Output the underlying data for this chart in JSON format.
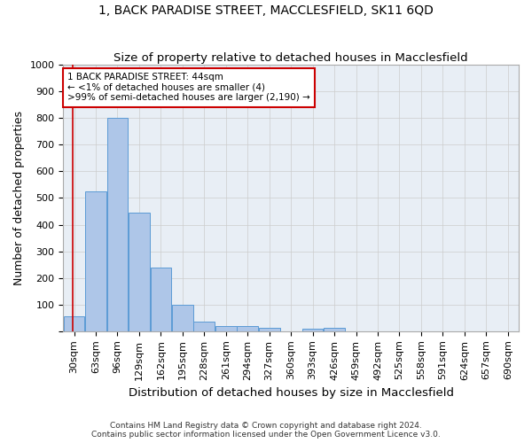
{
  "title": "1, BACK PARADISE STREET, MACCLESFIELD, SK11 6QD",
  "subtitle": "Size of property relative to detached houses in Macclesfield",
  "xlabel": "Distribution of detached houses by size in Macclesfield",
  "ylabel": "Number of detached properties",
  "bin_labels": [
    "30sqm",
    "63sqm",
    "96sqm",
    "129sqm",
    "162sqm",
    "195sqm",
    "228sqm",
    "261sqm",
    "294sqm",
    "327sqm",
    "360sqm",
    "393sqm",
    "426sqm",
    "459sqm",
    "492sqm",
    "525sqm",
    "558sqm",
    "591sqm",
    "624sqm",
    "657sqm",
    "690sqm"
  ],
  "bin_edges": [
    30,
    63,
    96,
    129,
    162,
    195,
    228,
    261,
    294,
    327,
    360,
    393,
    426,
    459,
    492,
    525,
    558,
    591,
    624,
    657,
    690
  ],
  "bar_heights": [
    55,
    525,
    800,
    445,
    240,
    98,
    35,
    20,
    20,
    12,
    0,
    8,
    12,
    0,
    0,
    0,
    0,
    0,
    0,
    0
  ],
  "bar_color": "#aec6e8",
  "bar_edge_color": "#5b9bd5",
  "red_line_x": 44,
  "annotation_line1": "1 BACK PARADISE STREET: 44sqm",
  "annotation_line2": "← <1% of detached houses are smaller (4)",
  "annotation_line3": ">99% of semi-detached houses are larger (2,190) →",
  "annotation_box_color": "#ffffff",
  "annotation_box_edge_color": "#cc0000",
  "ylim": [
    0,
    1000
  ],
  "yticks": [
    0,
    100,
    200,
    300,
    400,
    500,
    600,
    700,
    800,
    900,
    1000
  ],
  "grid_color": "#cccccc",
  "background_color": "#e8eef5",
  "footnote": "Contains HM Land Registry data © Crown copyright and database right 2024.\nContains public sector information licensed under the Open Government Licence v3.0.",
  "title_fontsize": 10,
  "subtitle_fontsize": 9.5,
  "axis_label_fontsize": 9,
  "tick_fontsize": 8,
  "annotation_fontsize": 7.5,
  "footnote_fontsize": 6.5
}
